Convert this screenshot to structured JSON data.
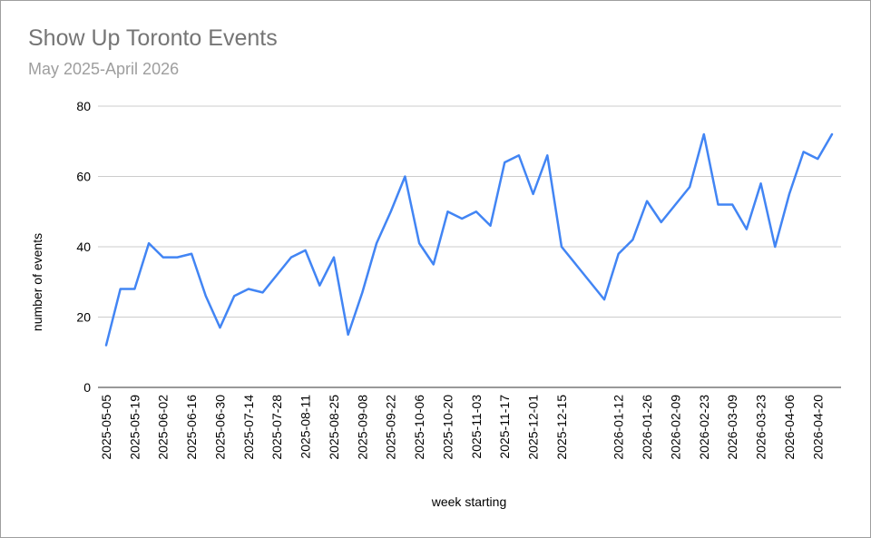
{
  "chart_data": {
    "type": "line",
    "title": "Show Up Toronto Events",
    "subtitle": "May 2025-April 2026",
    "xlabel": "week starting",
    "ylabel": "number of events",
    "ylim": [
      0,
      80
    ],
    "y_ticks": [
      0,
      20,
      40,
      60,
      80
    ],
    "grid": true,
    "x_tick_labels": [
      "2025-05-05",
      "2025-05-19",
      "2025-06-02",
      "2025-06-16",
      "2025-06-30",
      "2025-07-14",
      "2025-07-28",
      "2025-08-11",
      "2025-08-25",
      "2025-09-08",
      "2025-09-22",
      "2025-10-06",
      "2025-10-20",
      "2025-11-03",
      "2025-11-17",
      "2025-12-01",
      "2025-12-15",
      "2026-01-12",
      "2026-01-26",
      "2026-02-09",
      "2026-02-23",
      "2026-03-09",
      "2026-03-23",
      "2026-04-06",
      "2026-04-20"
    ],
    "x": [
      "2025-05-05",
      "2025-05-12",
      "2025-05-19",
      "2025-05-26",
      "2025-06-02",
      "2025-06-09",
      "2025-06-16",
      "2025-06-23",
      "2025-06-30",
      "2025-07-07",
      "2025-07-14",
      "2025-07-21",
      "2025-07-28",
      "2025-08-04",
      "2025-08-11",
      "2025-08-18",
      "2025-08-25",
      "2025-09-01",
      "2025-09-08",
      "2025-09-15",
      "2025-09-22",
      "2025-09-29",
      "2025-10-06",
      "2025-10-13",
      "2025-10-20",
      "2025-10-27",
      "2025-11-03",
      "2025-11-10",
      "2025-11-17",
      "2025-11-24",
      "2025-12-01",
      "2025-12-08",
      "2025-12-15",
      "2026-01-05",
      "2026-01-12",
      "2026-01-19",
      "2026-01-26",
      "2026-02-02",
      "2026-02-09",
      "2026-02-16",
      "2026-02-23",
      "2026-03-02",
      "2026-03-09",
      "2026-03-16",
      "2026-03-23",
      "2026-03-30",
      "2026-04-06",
      "2026-04-13",
      "2026-04-20",
      "2026-04-27"
    ],
    "series": [
      {
        "color": "#4285f4",
        "values": [
          12,
          28,
          28,
          41,
          37,
          37,
          38,
          26,
          17,
          26,
          28,
          27,
          32,
          37,
          39,
          29,
          37,
          15,
          27,
          41,
          50,
          60,
          41,
          35,
          50,
          48,
          50,
          46,
          64,
          66,
          55,
          66,
          40,
          25,
          38,
          42,
          53,
          47,
          52,
          57,
          72,
          52,
          52,
          45,
          58,
          40,
          55,
          67,
          65,
          72
        ]
      }
    ]
  }
}
